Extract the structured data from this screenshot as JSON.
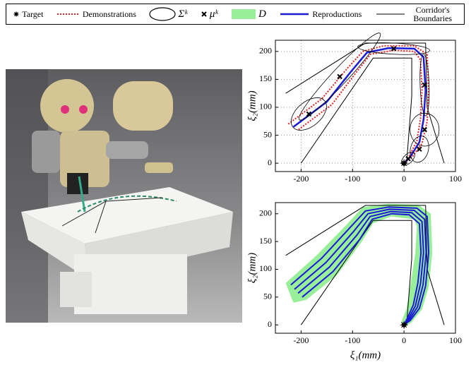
{
  "legend": {
    "items": [
      {
        "label": "Target",
        "marker": "star",
        "color": "#000000"
      },
      {
        "label": "Demonstrations",
        "marker": "dotted",
        "color": "#e02020"
      },
      {
        "label": "Σᵏ",
        "marker": "ellipse",
        "color": "#000000"
      },
      {
        "label": "μᵏ",
        "marker": "cross",
        "color": "#000000"
      },
      {
        "label": "D",
        "marker": "patch",
        "color": "#99ee99"
      },
      {
        "label": "Reproductions",
        "marker": "line",
        "color": "#1a1ad6"
      },
      {
        "label": "Corridor's Boundaries",
        "marker": "thinline",
        "color": "#000000"
      }
    ]
  },
  "chart_data": [
    {
      "type": "line",
      "ylabel": "ξ₂(mm)",
      "xlim": [
        -250,
        100
      ],
      "ylim": [
        -15,
        220
      ],
      "xticks": [
        -200,
        -100,
        0,
        100
      ],
      "yticks": [
        0,
        50,
        100,
        150,
        200
      ],
      "grid": true,
      "series": [
        {
          "color": "#000000",
          "width": 1,
          "x": [
            -230,
            -75,
            42,
            45,
            78
          ],
          "values": [
            125,
            215,
            215,
            100,
            0
          ]
        },
        {
          "color": "#000000",
          "width": 1,
          "x": [
            -200,
            -60,
            15,
            15,
            5
          ],
          "values": [
            0,
            188,
            188,
            120,
            0
          ]
        },
        {
          "color": "#e02020",
          "width": 2,
          "dash": true,
          "x": [
            -225,
            -160,
            -110,
            -80,
            -40,
            20,
            45,
            48,
            45,
            35,
            15,
            0
          ],
          "values": [
            70,
            115,
            170,
            200,
            210,
            210,
            195,
            130,
            75,
            35,
            10,
            0
          ]
        },
        {
          "color": "#e02020",
          "width": 2,
          "dash": true,
          "x": [
            -205,
            -140,
            -95,
            -65,
            -20,
            20,
            32,
            35,
            32,
            25,
            10,
            0
          ],
          "values": [
            60,
            105,
            160,
            195,
            202,
            200,
            185,
            130,
            80,
            40,
            12,
            0
          ]
        },
        {
          "color": "#1a1ad6",
          "width": 2.5,
          "x": [
            -215,
            -150,
            -102,
            -72,
            -30,
            20,
            38,
            42,
            38,
            30,
            12,
            0
          ],
          "values": [
            65,
            110,
            165,
            198,
            206,
            205,
            190,
            130,
            78,
            38,
            11,
            0
          ]
        }
      ],
      "gaussians": [
        {
          "mu_x": -185,
          "mu_y": 88,
          "rx": 40,
          "ry": 22,
          "angle": 40
        },
        {
          "mu_x": -125,
          "mu_y": 155,
          "rx": 115,
          "ry": 14,
          "angle": 47
        },
        {
          "mu_x": -20,
          "mu_y": 205,
          "rx": 70,
          "ry": 10,
          "angle": -3
        },
        {
          "mu_x": 40,
          "mu_y": 140,
          "rx": 60,
          "ry": 8,
          "angle": 92
        },
        {
          "mu_x": 40,
          "mu_y": 60,
          "rx": 32,
          "ry": 26,
          "angle": 90
        },
        {
          "mu_x": 30,
          "mu_y": 25,
          "rx": 26,
          "ry": 16,
          "angle": 75
        },
        {
          "mu_x": 8,
          "mu_y": 8,
          "rx": 16,
          "ry": 8,
          "angle": 45
        }
      ],
      "target": {
        "x": 0,
        "y": 0
      }
    },
    {
      "type": "line",
      "ylabel": "ξ₂(mm)",
      "xlabel": "ξ₁(mm)",
      "xlim": [
        -250,
        100
      ],
      "ylim": [
        -15,
        220
      ],
      "xticks": [
        -200,
        -100,
        0,
        100
      ],
      "yticks": [
        0,
        50,
        100,
        150,
        200
      ],
      "grid": false,
      "region": {
        "color": "#99ee99",
        "x": [
          -230,
          -170,
          -112,
          -80,
          -30,
          28,
          52,
          55,
          48,
          35,
          15,
          0,
          -5,
          5,
          14,
          22,
          25,
          20,
          0,
          -25,
          -60,
          -82,
          -130,
          -190,
          -215
        ],
        "values": [
          75,
          125,
          180,
          212,
          218,
          216,
          200,
          130,
          68,
          28,
          5,
          -5,
          5,
          30,
          80,
          130,
          178,
          190,
          192,
          195,
          183,
          150,
          90,
          45,
          40
        ]
      },
      "series": [
        {
          "color": "#000000",
          "width": 1,
          "x": [
            -230,
            -75,
            42,
            45,
            78
          ],
          "values": [
            125,
            215,
            215,
            100,
            0
          ]
        },
        {
          "color": "#000000",
          "width": 1,
          "x": [
            -200,
            -60,
            15,
            15,
            5
          ],
          "values": [
            0,
            188,
            188,
            120,
            0
          ]
        },
        {
          "color": "#1a1ad6",
          "width": 2,
          "x": [
            -220,
            -160,
            -105,
            -75,
            -30,
            25,
            45,
            48,
            42,
            30,
            12,
            0
          ],
          "values": [
            72,
            120,
            175,
            205,
            212,
            210,
            195,
            130,
            70,
            30,
            8,
            0
          ]
        },
        {
          "color": "#1a1ad6",
          "width": 2,
          "x": [
            -213,
            -152,
            -98,
            -70,
            -28,
            20,
            40,
            43,
            37,
            26,
            10,
            0
          ],
          "values": [
            64,
            112,
            168,
            200,
            208,
            206,
            190,
            130,
            72,
            32,
            9,
            0
          ]
        },
        {
          "color": "#1a1ad6",
          "width": 2,
          "x": [
            -206,
            -145,
            -92,
            -66,
            -26,
            15,
            35,
            38,
            32,
            22,
            8,
            0
          ],
          "values": [
            57,
            104,
            161,
            195,
            204,
            202,
            186,
            130,
            74,
            34,
            10,
            0
          ]
        },
        {
          "color": "#1a1ad6",
          "width": 2,
          "x": [
            -198,
            -138,
            -86,
            -62,
            -24,
            10,
            30,
            33,
            27,
            18,
            6,
            0
          ],
          "values": [
            50,
            96,
            154,
            190,
            200,
            198,
            182,
            130,
            76,
            36,
            11,
            0
          ]
        }
      ],
      "target": {
        "x": 0,
        "y": 0
      }
    }
  ]
}
